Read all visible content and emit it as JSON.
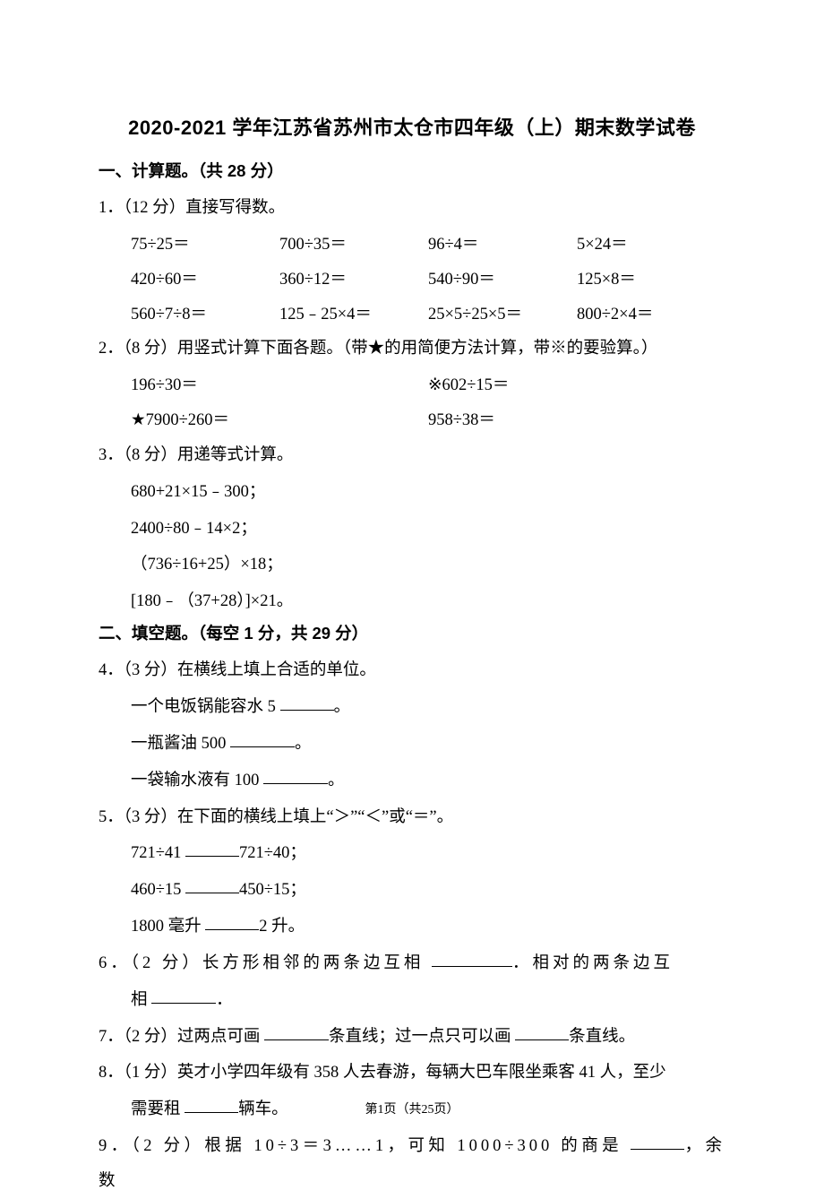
{
  "title": "2020-2021 学年江苏省苏州市太仓市四年级（上）期末数学试卷",
  "section1": {
    "heading": "一、计算题。（共 28 分）",
    "q1": {
      "stem": "1．（12 分）直接写得数。",
      "rows": [
        [
          "75÷25＝",
          "700÷35＝",
          "96÷4＝",
          "5×24＝"
        ],
        [
          "420÷60＝",
          "360÷12＝",
          "540÷90＝",
          "125×8＝"
        ],
        [
          "560÷7÷8＝",
          "125﹣25×4＝",
          "25×5÷25×5＝",
          "800÷2×4＝"
        ]
      ]
    },
    "q2": {
      "stem": "2．（8 分）用竖式计算下面各题。（带★的用简便方法计算，带※的要验算。）",
      "rows": [
        [
          "196÷30＝",
          "※602÷15＝"
        ],
        [
          "★7900÷260＝",
          "958÷38＝"
        ]
      ]
    },
    "q3": {
      "stem": "3．（8 分）用递等式计算。",
      "lines": [
        "680+21×15﹣300；",
        "2400÷80﹣14×2；",
        "（736÷16+25）×18；",
        "[180﹣（37+28）]×21。"
      ]
    }
  },
  "section2": {
    "heading": "二、填空题。（每空 1 分，共 29 分）",
    "q4": {
      "stem": "4．（3 分）在横线上填上合适的单位。",
      "lines": [
        {
          "pre": "一个电饭锅能容水 5 ",
          "blank_w": "w-short",
          "post": "。"
        },
        {
          "pre": "一瓶酱油 500 ",
          "blank_w": "w-med",
          "post": "。"
        },
        {
          "pre": "一袋输水液有 100 ",
          "blank_w": "w-med",
          "post": "。"
        }
      ]
    },
    "q5": {
      "stem": "5．（3 分）在下面的横线上填上“＞”“＜”或“＝”。",
      "lines": [
        {
          "pre": "721÷41 ",
          "blank_w": "w-short",
          "post": "721÷40；"
        },
        {
          "pre": "460÷15 ",
          "blank_w": "w-short",
          "post": "450÷15；"
        },
        {
          "pre": "1800 毫升 ",
          "blank_w": "w-short",
          "post": "2 升。"
        }
      ]
    },
    "q6": {
      "pre": "6．（2 分）长方形相邻的两条边互相 ",
      "mid": "．相对的两条边互",
      "line2_pre": "相 ",
      "post": "．"
    },
    "q7": {
      "pre": "7．（2 分）过两点可画 ",
      "mid": "条直线；过一点只可以画 ",
      "post": "条直线。"
    },
    "q8": {
      "pre": "8．（1 分）英才小学四年级有 358 人去春游，每辆大巴车限坐乘客 41 人，至少",
      "line2_pre": "需要租 ",
      "post": "辆车。"
    },
    "q9": {
      "pre": "9．（2 分）根据 10÷3＝3……1，可知 1000÷300 的商是 ",
      "post": "，余数"
    }
  },
  "footer": {
    "page": "第",
    "num": "1",
    "of": "页（共",
    "total": "25",
    "end": "页）"
  }
}
